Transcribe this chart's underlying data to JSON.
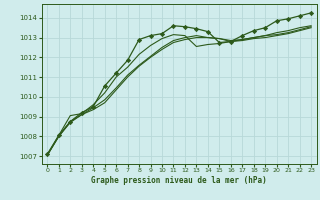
{
  "title": "Graphe pression niveau de la mer (hPa)",
  "bg_color": "#d0ecec",
  "grid_color": "#b8d8d8",
  "line_color": "#2d5a1b",
  "marker_color": "#2d5a1b",
  "xlim": [
    -0.5,
    23.5
  ],
  "ylim": [
    1006.6,
    1014.7
  ],
  "yticks": [
    1007,
    1008,
    1009,
    1010,
    1011,
    1012,
    1013,
    1014
  ],
  "xticks": [
    0,
    1,
    2,
    3,
    4,
    5,
    6,
    7,
    8,
    9,
    10,
    11,
    12,
    13,
    14,
    15,
    16,
    17,
    18,
    19,
    20,
    21,
    22,
    23
  ],
  "series1_x": [
    0,
    1,
    2,
    3,
    4,
    5,
    6,
    7,
    8,
    9,
    10,
    11,
    12,
    13,
    14,
    15,
    16,
    17,
    18,
    19,
    20,
    21,
    22,
    23
  ],
  "series1_y": [
    1007.1,
    1008.05,
    1008.75,
    1009.2,
    1009.5,
    1010.55,
    1011.2,
    1011.85,
    1012.9,
    1013.1,
    1013.2,
    1013.6,
    1013.55,
    1013.45,
    1013.3,
    1012.75,
    1012.8,
    1013.1,
    1013.35,
    1013.5,
    1013.85,
    1013.95,
    1014.1,
    1014.25
  ],
  "series2_x": [
    0,
    1,
    2,
    3,
    4,
    5,
    6,
    7,
    8,
    9,
    10,
    11,
    12,
    13,
    14,
    15,
    16,
    17,
    18,
    19,
    20,
    21,
    22,
    23
  ],
  "series2_y": [
    1007.05,
    1008.05,
    1009.05,
    1009.15,
    1009.6,
    1010.2,
    1011.0,
    1011.5,
    1012.15,
    1012.6,
    1012.95,
    1013.15,
    1013.1,
    1012.55,
    1012.65,
    1012.7,
    1012.8,
    1012.9,
    1013.0,
    1013.1,
    1013.25,
    1013.35,
    1013.5,
    1013.6
  ],
  "series3_x": [
    0,
    1,
    2,
    3,
    4,
    5,
    6,
    7,
    8,
    9,
    10,
    11,
    12,
    13,
    14,
    15,
    16,
    17,
    18,
    19,
    20,
    21,
    22,
    23
  ],
  "series3_y": [
    1007.05,
    1008.0,
    1008.75,
    1009.1,
    1009.45,
    1009.85,
    1010.45,
    1011.1,
    1011.6,
    1012.05,
    1012.5,
    1012.85,
    1013.0,
    1013.1,
    1013.0,
    1012.95,
    1012.85,
    1012.9,
    1013.0,
    1013.1,
    1013.15,
    1013.25,
    1013.4,
    1013.55
  ],
  "series4_x": [
    0,
    1,
    2,
    3,
    4,
    5,
    6,
    7,
    8,
    9,
    10,
    11,
    12,
    13,
    14,
    15,
    16,
    17,
    18,
    19,
    20,
    21,
    22,
    23
  ],
  "series4_y": [
    1007.05,
    1008.0,
    1008.7,
    1009.1,
    1009.35,
    1009.7,
    1010.35,
    1011.0,
    1011.55,
    1012.0,
    1012.4,
    1012.75,
    1012.9,
    1013.0,
    1013.0,
    1012.95,
    1012.8,
    1012.85,
    1012.95,
    1013.0,
    1013.1,
    1013.2,
    1013.35,
    1013.5
  ]
}
